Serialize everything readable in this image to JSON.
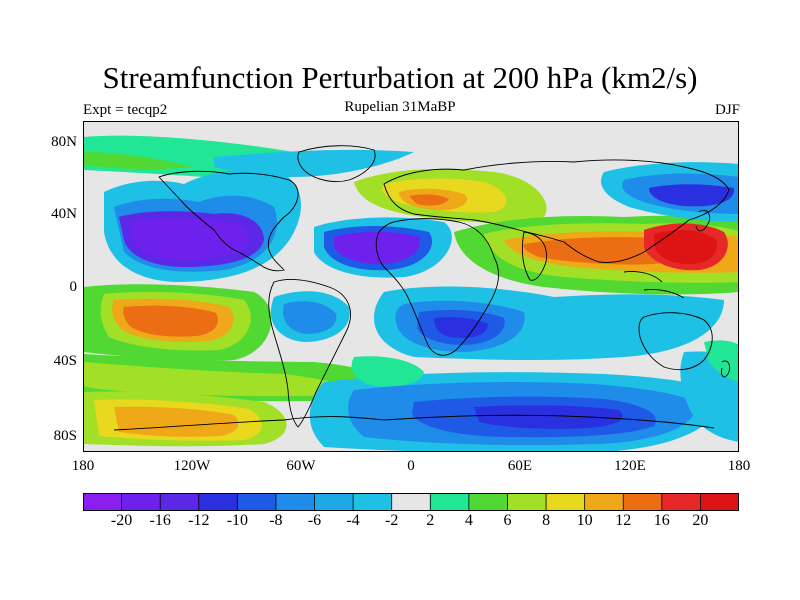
{
  "title": "Streamfunction Perturbation at 200 hPa (km2/s)",
  "expt_label": "Expt = tecqp2",
  "subtitle": "Rupelian  31MaBP",
  "season": "DJF",
  "x_ticks": [
    "180",
    "120W",
    "60W",
    "0",
    "60E",
    "120E",
    "180"
  ],
  "y_ticks": [
    "80N",
    "40N",
    "0",
    "40S",
    "80S"
  ],
  "colorbar": {
    "levels": [
      "-20",
      "-16",
      "-12",
      "-10",
      "-8",
      "-6",
      "-4",
      "-2",
      "2",
      "4",
      "6",
      "8",
      "10",
      "12",
      "16",
      "20"
    ],
    "colors": [
      "#8c1ef0",
      "#6e20ec",
      "#5a28e6",
      "#2a30e0",
      "#1e5ae6",
      "#1e8ce8",
      "#1ea8e6",
      "#1ec0e6",
      "#e6e6e6",
      "#20e696",
      "#52d832",
      "#a2e028",
      "#e8d81e",
      "#eea818",
      "#ec6e14",
      "#e62828",
      "#dc1414"
    ]
  },
  "colors": {
    "neutral": "#e6e6e6",
    "coastline": "#000000"
  }
}
